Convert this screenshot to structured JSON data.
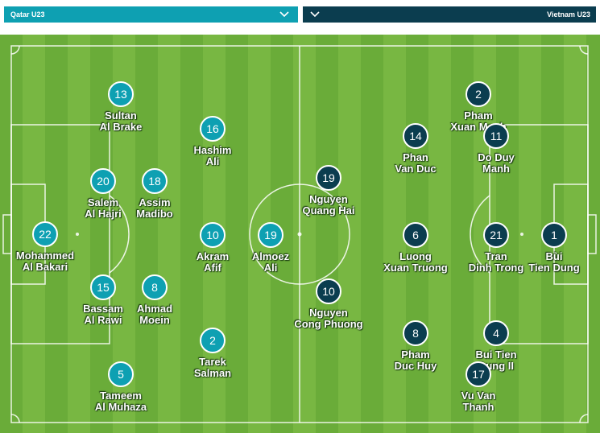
{
  "header": {
    "home_team": "Qatar U23",
    "away_team": "Vietnam U23"
  },
  "colors": {
    "home_badge": "#0ea0b2",
    "away_badge": "#0b3d4f",
    "pitch_light": "#78b742",
    "pitch_dark": "#6aac39"
  },
  "icons": [
    "chevron-down-icon"
  ],
  "home_players": [
    {
      "number": "13",
      "name1": "Sultan",
      "name2": "Al Brake"
    },
    {
      "number": "16",
      "name1": "Hashim",
      "name2": "Ali"
    },
    {
      "number": "20",
      "name1": "Salem",
      "name2": "Al Hajri"
    },
    {
      "number": "18",
      "name1": "Assim",
      "name2": "Madibo"
    },
    {
      "number": "22",
      "name1": "Mohammed",
      "name2": "Al Bakari"
    },
    {
      "number": "10",
      "name1": "Akram",
      "name2": "Afif"
    },
    {
      "number": "19",
      "name1": "Almoez",
      "name2": "Ali"
    },
    {
      "number": "15",
      "name1": "Bassam",
      "name2": "Al Rawi"
    },
    {
      "number": "8",
      "name1": "Ahmad",
      "name2": "Moein"
    },
    {
      "number": "2",
      "name1": "Tarek",
      "name2": "Salman"
    },
    {
      "number": "5",
      "name1": "Tameem",
      "name2": "Al Muhaza"
    }
  ],
  "away_players": [
    {
      "number": "2",
      "name1": "Pham",
      "name2": "Xuan Manh"
    },
    {
      "number": "14",
      "name1": "Phan",
      "name2": "Van Duc"
    },
    {
      "number": "11",
      "name1": "Do Duy",
      "name2": "Manh"
    },
    {
      "number": "19",
      "name1": "Nguyen",
      "name2": "Quang Hai"
    },
    {
      "number": "6",
      "name1": "Luong",
      "name2": "Xuan Truong"
    },
    {
      "number": "21",
      "name1": "Tran",
      "name2": "Dinh Trong"
    },
    {
      "number": "1",
      "name1": "Bùi",
      "name2": "Tien Dung"
    },
    {
      "number": "10",
      "name1": "Nguyen",
      "name2": "Cong Phuong"
    },
    {
      "number": "8",
      "name1": "Pham",
      "name2": "Duc Huy"
    },
    {
      "number": "4",
      "name1": "Bui Tien",
      "name2": "Dung II"
    },
    {
      "number": "17",
      "name1": "Vu Van",
      "name2": "Thanh"
    }
  ]
}
